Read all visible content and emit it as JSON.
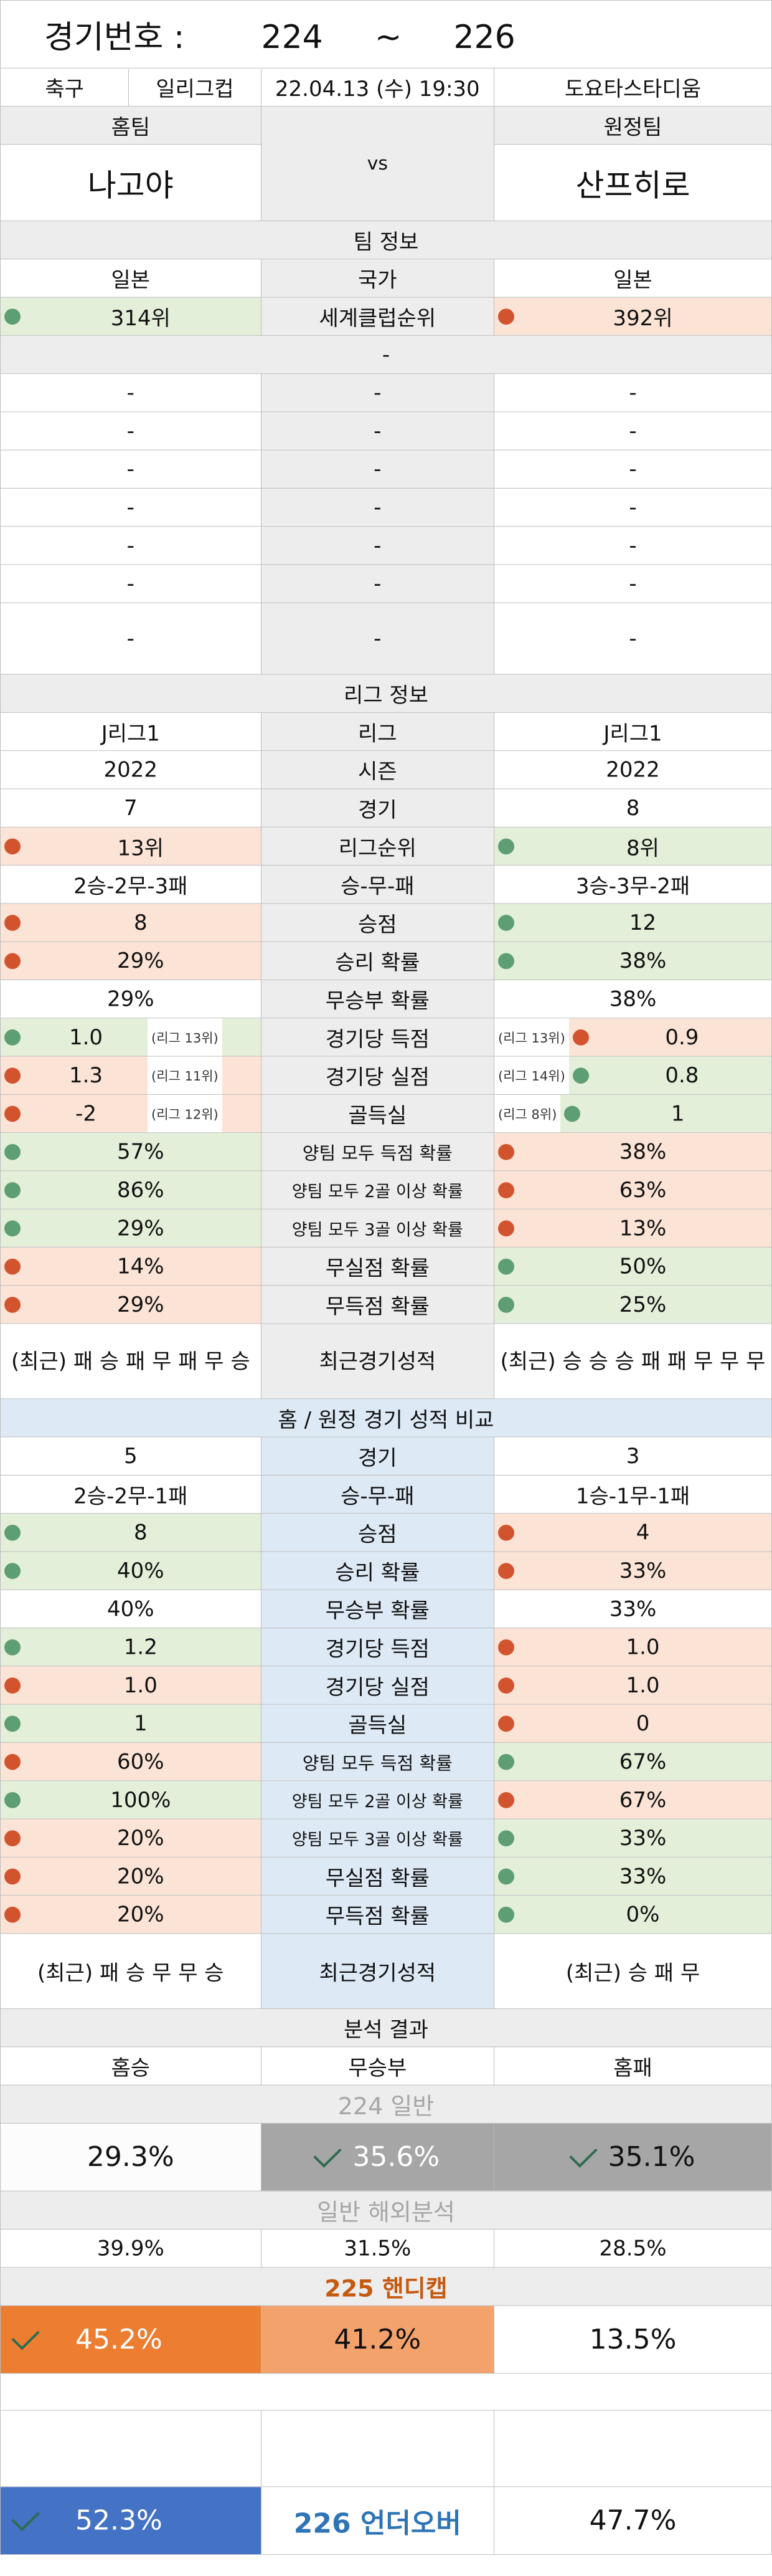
{
  "header": {
    "label": "경기번호 :",
    "num_from": "224",
    "tilde": "~",
    "num_to": "226"
  },
  "match": {
    "sport": "축구",
    "league": "일리그컵",
    "datetime": "22.04.13 (수) 19:30",
    "stadium": "도요타스타디움"
  },
  "teams": {
    "home_label": "홈팀",
    "away_label": "원정팀",
    "home": "나고야",
    "vs": "vs",
    "away": "산프히로"
  },
  "team_info": {
    "title": "팀 정보",
    "country_home": "일본",
    "country_label": "국가",
    "country_away": "일본",
    "rank_home": "314위",
    "rank_label": "세계클럽순위",
    "rank_away": "392위",
    "dash": "-"
  },
  "league_info": {
    "title": "리그 정보",
    "rows": [
      {
        "home": "J리그1",
        "label": "리그",
        "away": "J리그1"
      },
      {
        "home": "2022",
        "label": "시즌",
        "away": "2022"
      },
      {
        "home": "7",
        "label": "경기",
        "away": "8"
      }
    ],
    "rank": {
      "home": "13위",
      "label": "리그순위",
      "away": "8위"
    },
    "record": {
      "home": "2승-2무-3패",
      "label": "승-무-패",
      "away": "3승-3무-2패"
    },
    "points": {
      "home": "8",
      "label": "승점",
      "away": "12"
    },
    "win_prob": {
      "home": "29%",
      "label": "승리 확률",
      "away": "38%"
    },
    "draw_prob": {
      "home": "29%",
      "label": "무승부 확률",
      "away": "38%"
    },
    "goals_for": {
      "home": "1.0",
      "home_note": "(리그 13위)",
      "label": "경기당 득점",
      "away_note": "(리그 13위)",
      "away": "0.9"
    },
    "goals_against": {
      "home": "1.3",
      "home_note": "(리그 11위)",
      "label": "경기당 실점",
      "away_note": "(리그 14위)",
      "away": "0.8"
    },
    "goal_diff": {
      "home": "-2",
      "home_note": "(리그 12위)",
      "label": "골득실",
      "away_note": "(리그 8위)",
      "away": "1"
    },
    "btts": {
      "home": "57%",
      "label": "양팀 모두 득점 확률",
      "away": "38%"
    },
    "btts2": {
      "home": "86%",
      "label": "양팀 모두 2골 이상 확률",
      "away": "63%"
    },
    "btts3": {
      "home": "29%",
      "label": "양팀 모두 3골 이상 확률",
      "away": "13%"
    },
    "clean": {
      "home": "14%",
      "label": "무실점 확률",
      "away": "50%"
    },
    "noscore": {
      "home": "29%",
      "label": "무득점 확률",
      "away": "25%"
    },
    "recent": {
      "home": "(최근) 패 승 패 무 패 무 승",
      "label": "최근경기성적",
      "away": "(최근) 승 승 승 패 패 무 무 무"
    }
  },
  "ha_info": {
    "title": "홈 / 원정 경기 성적 비교",
    "games": {
      "home": "5",
      "label": "경기",
      "away": "3"
    },
    "record": {
      "home": "2승-2무-1패",
      "label": "승-무-패",
      "away": "1승-1무-1패"
    },
    "points": {
      "home": "8",
      "label": "승점",
      "away": "4"
    },
    "win_prob": {
      "home": "40%",
      "label": "승리 확률",
      "away": "33%"
    },
    "draw_prob": {
      "home": "40%",
      "label": "무승부 확률",
      "away": "33%"
    },
    "goals_for": {
      "home": "1.2",
      "label": "경기당 득점",
      "away": "1.0"
    },
    "goals_against": {
      "home": "1.0",
      "label": "경기당 실점",
      "away": "1.0"
    },
    "goal_diff": {
      "home": "1",
      "label": "골득실",
      "away": "0"
    },
    "btts": {
      "home": "60%",
      "label": "양팀 모두 득점 확률",
      "away": "67%"
    },
    "btts2": {
      "home": "100%",
      "label": "양팀 모두 2골 이상 확률",
      "away": "67%"
    },
    "btts3": {
      "home": "20%",
      "label": "양팀 모두 3골 이상 확률",
      "away": "33%"
    },
    "clean": {
      "home": "20%",
      "label": "무실점 확률",
      "away": "33%"
    },
    "noscore": {
      "home": "20%",
      "label": "무득점 확률",
      "away": "0%"
    },
    "recent": {
      "home": "(최근) 패 승 무 무 승",
      "label": "최근경기성적",
      "away": "(최근) 승 패 무"
    }
  },
  "analysis": {
    "title": "분석 결과",
    "col_home": "홈승",
    "col_draw": "무승부",
    "col_away": "홈패",
    "general_label": "224 일반",
    "general": {
      "home": "29.3%",
      "draw": "35.6%",
      "away": "35.1%"
    },
    "overseas_label": "일반 해외분석",
    "overseas": {
      "home": "39.9%",
      "draw": "31.5%",
      "away": "28.5%"
    },
    "handicap_label": "225 핸디캡",
    "handicap": {
      "home": "45.2%",
      "draw": "41.2%",
      "away": "13.5%"
    },
    "underover_label": "226 언더오버",
    "underover": {
      "under": "52.3%",
      "over": "47.7%"
    }
  },
  "colors": {
    "green_dot": "#5e9e73",
    "red_dot": "#d2542f",
    "orange": "#ed7d31",
    "blue": "#4472c4"
  }
}
